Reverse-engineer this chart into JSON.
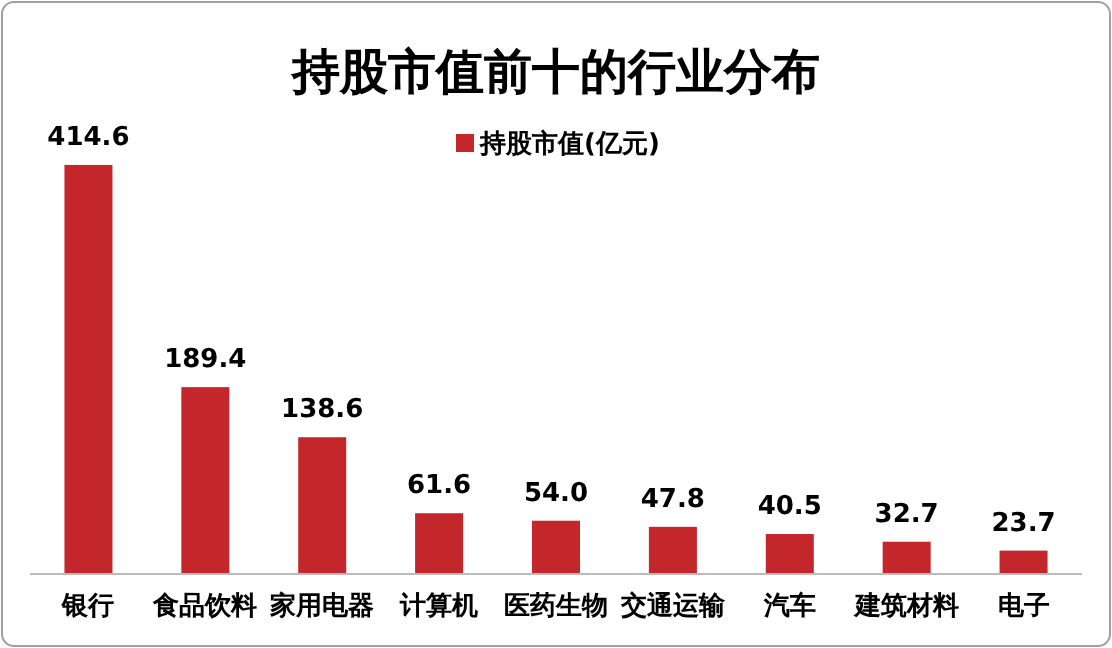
{
  "chart_data": {
    "type": "bar",
    "title": "持股市值前十的行业分布",
    "categories": [
      "银行",
      "食品饮料",
      "家用电器",
      "计算机",
      "医药生物",
      "交通运输",
      "汽车",
      "建筑材料",
      "电子"
    ],
    "series": [
      {
        "name": "持股市值(亿元)",
        "color": "#c3262b",
        "values": [
          414.6,
          189.4,
          138.6,
          61.6,
          54.0,
          47.8,
          40.5,
          32.7,
          23.7
        ],
        "value_labels": [
          "414.6",
          "189.4",
          "138.6",
          "61.6",
          "54.0",
          "47.8",
          "40.5",
          "32.7",
          "23.7"
        ]
      }
    ],
    "ylim": [
      0,
      450
    ],
    "legend": "top",
    "tick_labels": "x"
  }
}
